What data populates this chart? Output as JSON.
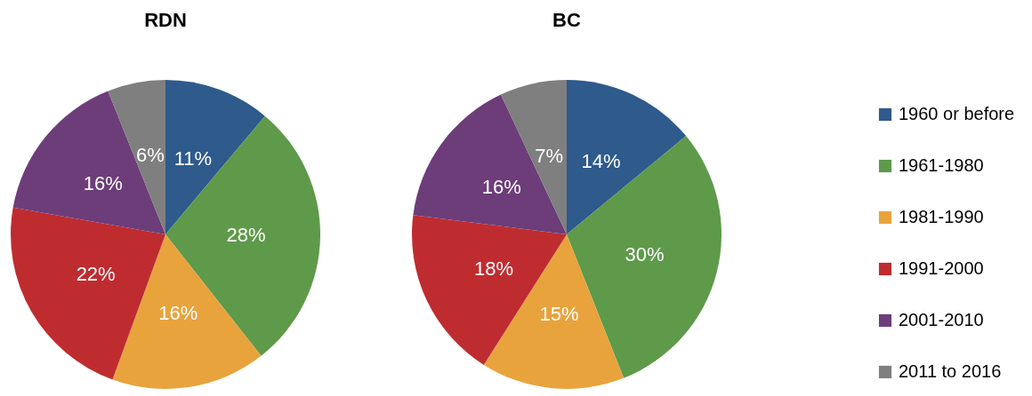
{
  "chart_data": [
    {
      "type": "pie",
      "title": "RDN",
      "categories": [
        "1960 or before",
        "1961-1980",
        "1981-1990",
        "1991-2000",
        "2001-2010",
        "2011 to 2016"
      ],
      "values": [
        11,
        28,
        16,
        22,
        16,
        6
      ],
      "colors": [
        "#2e5a8c",
        "#5e9a4a",
        "#e8a33d",
        "#be2c30",
        "#6d3d7a",
        "#7f7f7f"
      ],
      "value_labels": [
        "11%",
        "28%",
        "16%",
        "22%",
        "16%",
        "6%"
      ],
      "legend": "right"
    },
    {
      "type": "pie",
      "title": "BC",
      "categories": [
        null,
        null,
        null,
        null,
        null,
        null
      ],
      "values": [
        14,
        30,
        15,
        18,
        16,
        7
      ],
      "colors": [
        "#2e5a8c",
        "#5e9a4a",
        "#e8a33d",
        "#be2c30",
        "#6d3d7a",
        "#7f7f7f"
      ],
      "value_labels": [
        "14%",
        "30%",
        "15%",
        "18%",
        "16%",
        "7%"
      ]
    }
  ]
}
